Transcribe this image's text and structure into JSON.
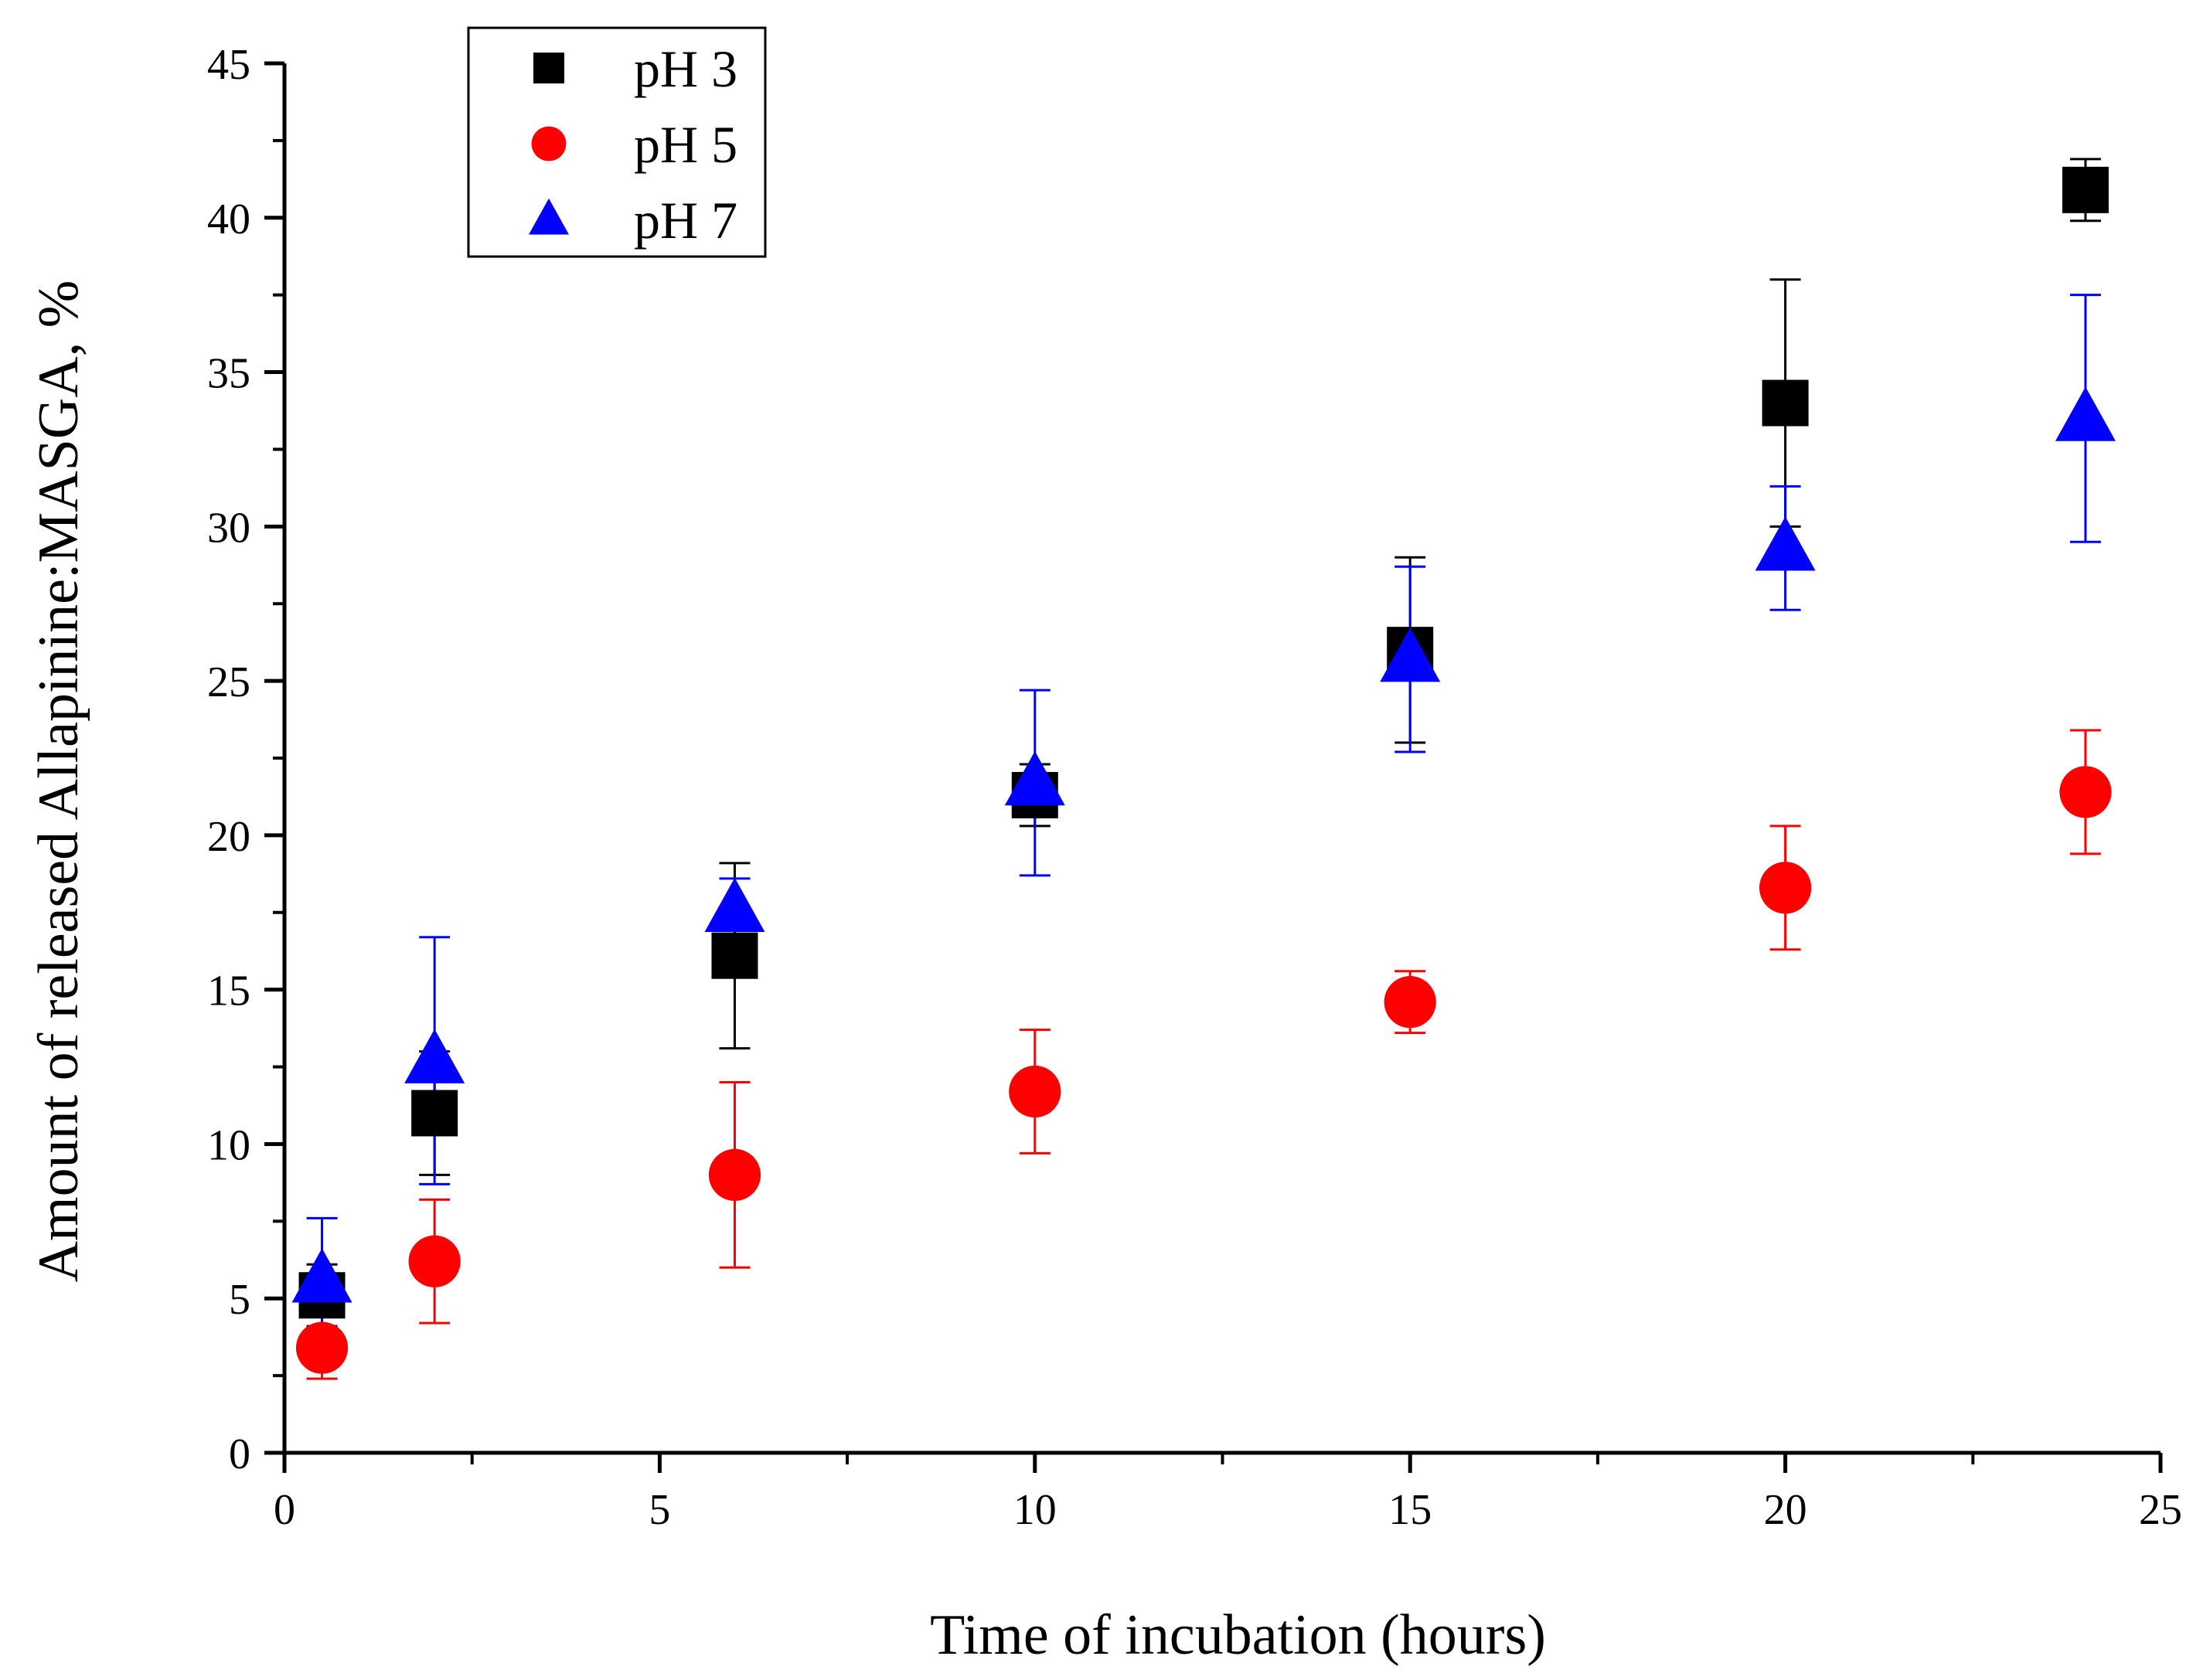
{
  "chart_data": {
    "type": "scatter",
    "title": "",
    "xlabel": "Time of incubation (hours)",
    "ylabel": "Amount of released Allapinine:MASGA, %",
    "xlim": [
      0,
      25
    ],
    "ylim": [
      0,
      45
    ],
    "xticks": [
      0,
      5,
      10,
      15,
      20,
      25
    ],
    "yticks": [
      0,
      5,
      10,
      15,
      20,
      25,
      30,
      35,
      40,
      45
    ],
    "x_tick_labels": [
      "0",
      "5",
      "10",
      "15",
      "20",
      "25"
    ],
    "y_tick_labels": [
      "0",
      "5",
      "10",
      "15",
      "20",
      "25",
      "30",
      "35",
      "40",
      "45"
    ],
    "grid": false,
    "legend_position": "top-left",
    "series": [
      {
        "name": "pH 3",
        "marker": "square",
        "color": "#000000",
        "x": [
          0.5,
          2,
          6,
          10,
          15,
          20,
          24
        ],
        "y": [
          5.1,
          11.0,
          16.1,
          21.3,
          26.0,
          34.0,
          40.9
        ],
        "err": [
          1.0,
          2.0,
          3.0,
          1.0,
          3.0,
          4.0,
          1.0
        ]
      },
      {
        "name": "pH 5",
        "marker": "circle",
        "color": "#ff0000",
        "x": [
          0.5,
          2,
          6,
          10,
          15,
          20,
          24
        ],
        "y": [
          3.4,
          6.2,
          9.0,
          11.7,
          14.6,
          18.3,
          21.4
        ],
        "err": [
          1.0,
          2.0,
          3.0,
          2.0,
          1.0,
          2.0,
          2.0
        ]
      },
      {
        "name": "pH 7",
        "marker": "triangle",
        "color": "#0000ff",
        "x": [
          0.5,
          2,
          6,
          10,
          15,
          20,
          24
        ],
        "y": [
          5.6,
          12.7,
          17.6,
          21.7,
          25.7,
          29.3,
          33.5
        ],
        "err": [
          2.0,
          4.0,
          1.0,
          3.0,
          3.0,
          2.0,
          4.0
        ]
      }
    ]
  }
}
